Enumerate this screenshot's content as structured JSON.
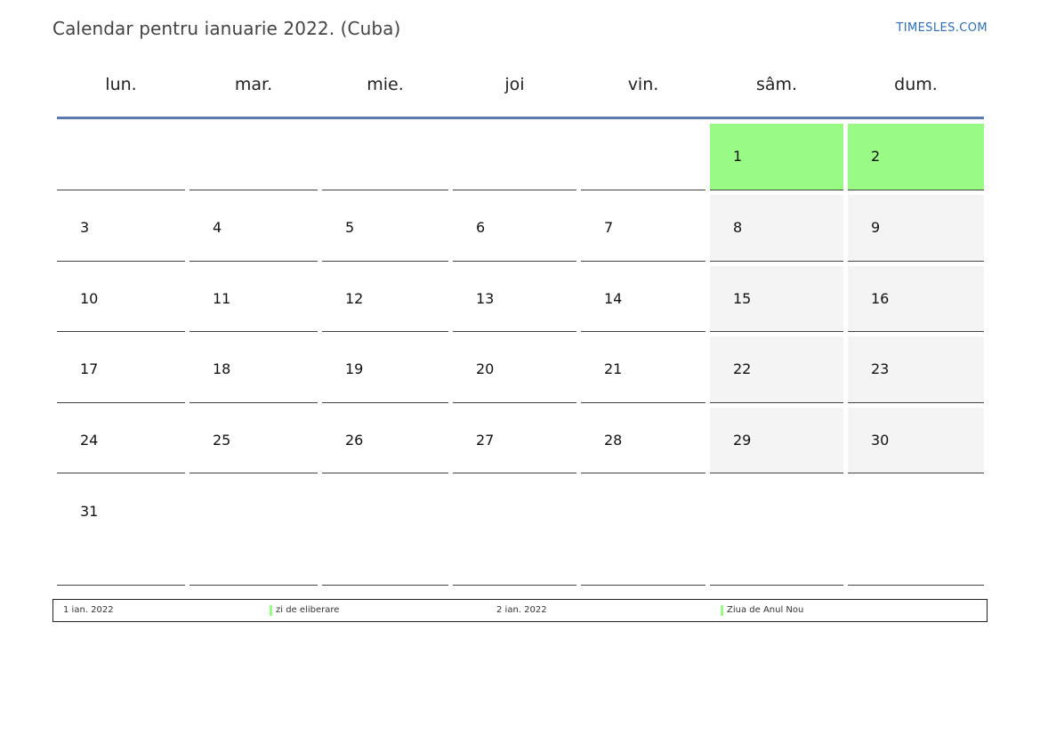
{
  "header": {
    "title": "Calendar pentru ianuarie 2022. (Cuba)",
    "site": "TIMESLES.COM"
  },
  "weekdays": [
    "lun.",
    "mar.",
    "mie.",
    "joi",
    "vin.",
    "sâm.",
    "dum."
  ],
  "weeks": [
    [
      "",
      "",
      "",
      "",
      "",
      "1",
      "2"
    ],
    [
      "3",
      "4",
      "5",
      "6",
      "7",
      "8",
      "9"
    ],
    [
      "10",
      "11",
      "12",
      "13",
      "14",
      "15",
      "16"
    ],
    [
      "17",
      "18",
      "19",
      "20",
      "21",
      "22",
      "23"
    ],
    [
      "24",
      "25",
      "26",
      "27",
      "28",
      "29",
      "30"
    ],
    [
      "31",
      "",
      "",
      "",
      "",
      "",
      ""
    ]
  ],
  "holidays": [
    "1",
    "2"
  ],
  "colors": {
    "holiday": "#99fb86",
    "weekend": "#f4f4f4",
    "header_rule": "#5a7ab0",
    "site_link": "#2e6fb3"
  },
  "legend": [
    {
      "date": "1 ian. 2022",
      "name": "zi de eliberare"
    },
    {
      "date": "2 ian. 2022",
      "name": "Ziua de Anul Nou"
    }
  ]
}
